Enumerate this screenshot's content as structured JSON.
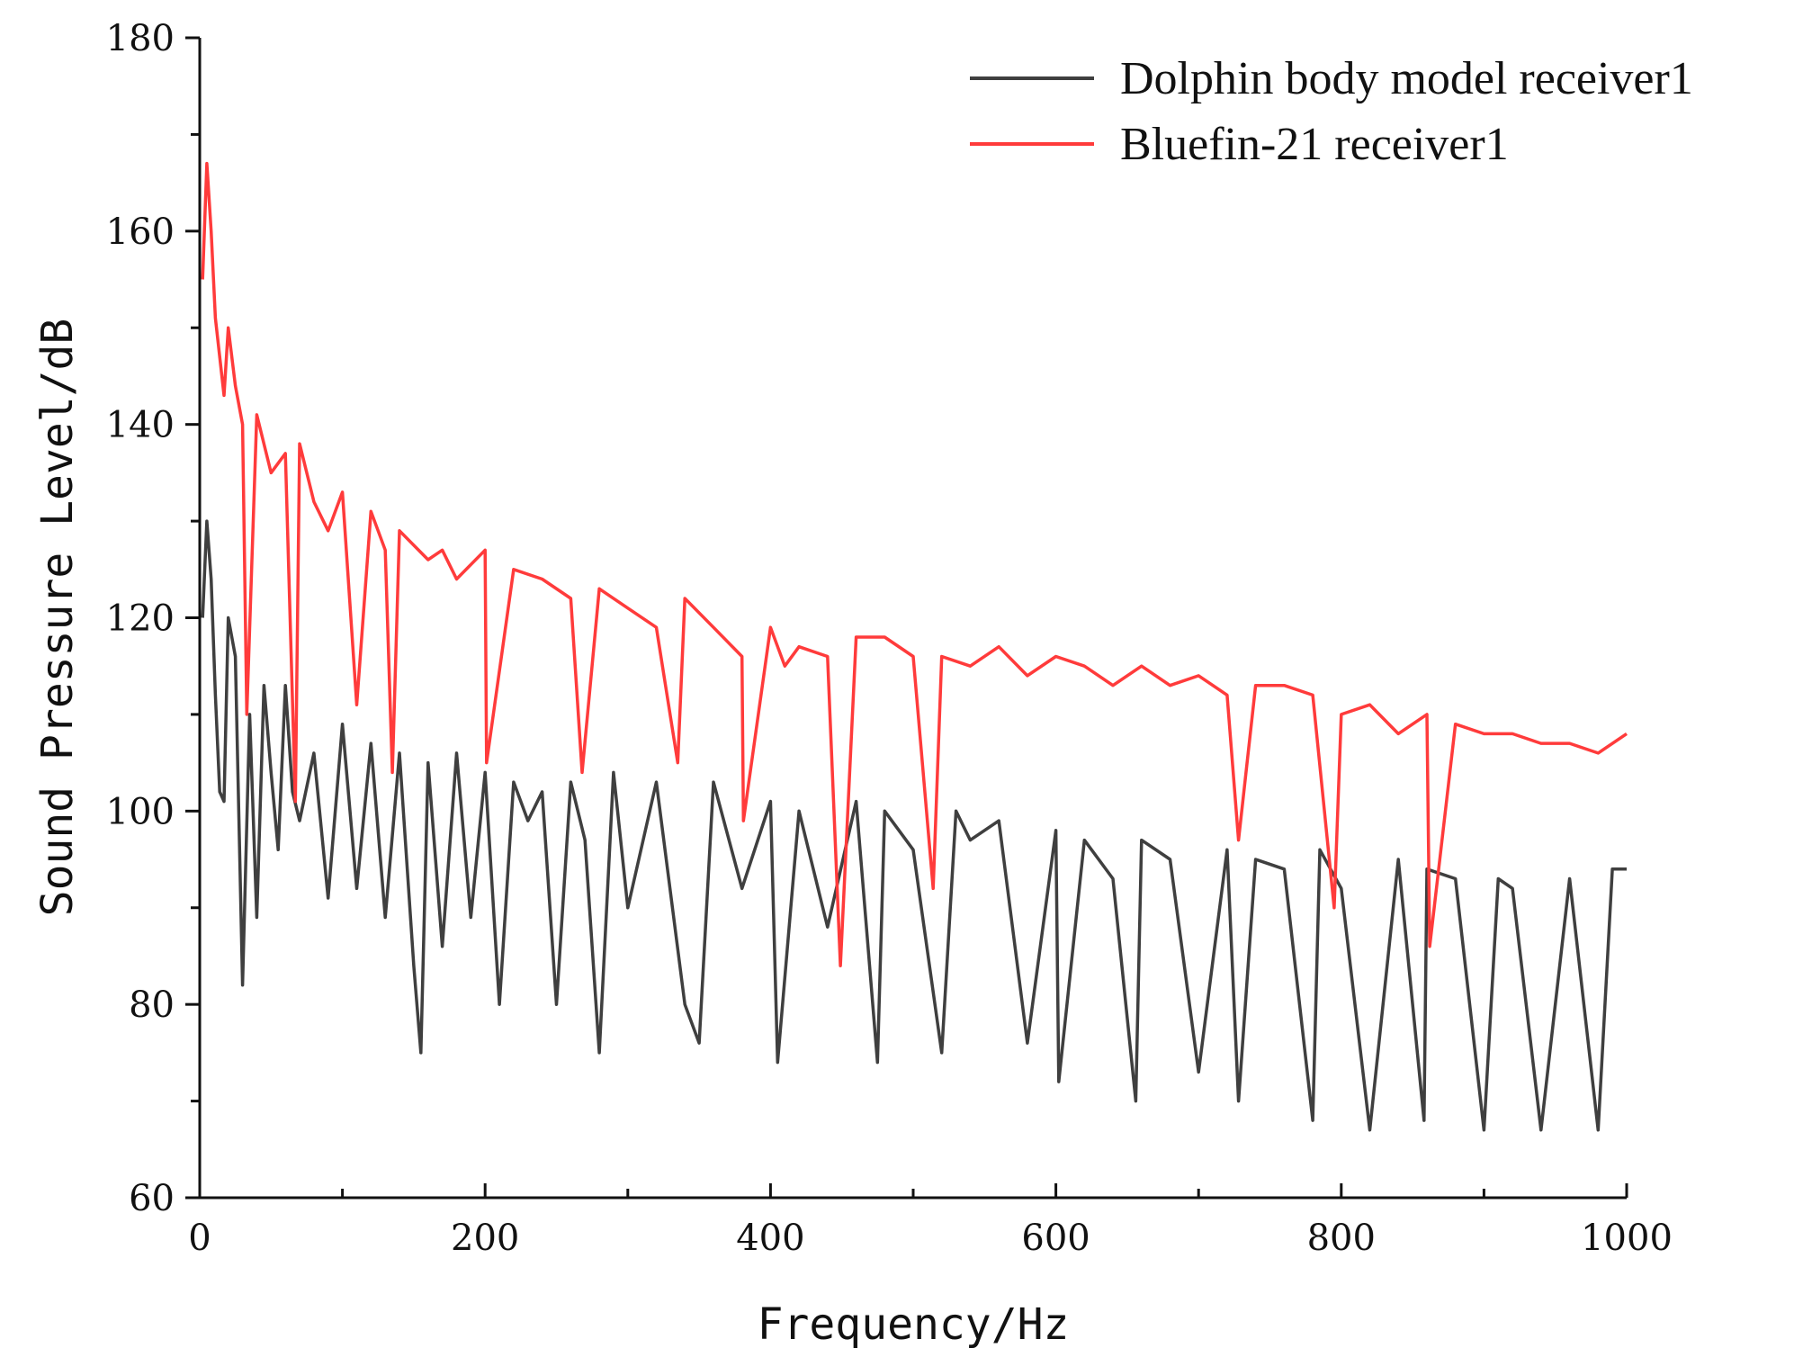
{
  "chart_data": {
    "type": "line",
    "title": "",
    "xlabel": "Frequency/Hz",
    "ylabel": "Sound Pressure Level/dB",
    "xlim": [
      0,
      1000
    ],
    "ylim": [
      60,
      180
    ],
    "xticks": [
      "0",
      "200",
      "400",
      "600",
      "800",
      "1000"
    ],
    "yticks": [
      "60",
      "80",
      "100",
      "120",
      "140",
      "160",
      "180"
    ],
    "grid": false,
    "legend_position": "top-right",
    "series": [
      {
        "name": "Dolphin body model receiver1",
        "color": "#3f3f3f",
        "x": [
          2,
          5,
          8,
          11,
          14,
          17,
          20,
          25,
          30,
          35,
          40,
          45,
          50,
          55,
          60,
          65,
          70,
          80,
          90,
          100,
          110,
          120,
          130,
          140,
          150,
          155,
          160,
          170,
          180,
          190,
          200,
          210,
          220,
          230,
          240,
          250,
          260,
          270,
          280,
          290,
          300,
          320,
          340,
          350,
          360,
          380,
          400,
          405,
          420,
          440,
          460,
          475,
          480,
          500,
          520,
          530,
          540,
          560,
          580,
          600,
          602,
          620,
          640,
          656,
          660,
          680,
          700,
          720,
          728,
          740,
          760,
          780,
          785,
          800,
          820,
          840,
          858,
          860,
          880,
          900,
          910,
          920,
          940,
          960,
          980,
          990,
          1000
        ],
        "values": [
          120,
          130,
          124,
          112,
          102,
          101,
          120,
          116,
          82,
          110,
          89,
          113,
          104,
          96,
          113,
          102,
          99,
          106,
          91,
          109,
          92,
          107,
          89,
          106,
          84,
          75,
          105,
          86,
          106,
          89,
          104,
          80,
          103,
          99,
          102,
          80,
          103,
          97,
          75,
          104,
          90,
          103,
          80,
          76,
          103,
          92,
          101,
          74,
          100,
          88,
          101,
          74,
          100,
          96,
          75,
          100,
          97,
          99,
          76,
          98,
          72,
          97,
          93,
          70,
          97,
          95,
          73,
          96,
          70,
          95,
          94,
          68,
          96,
          92,
          67,
          95,
          68,
          94,
          93,
          67,
          93,
          92,
          67,
          93,
          67,
          94,
          94
        ]
      },
      {
        "name": "Bluefin-21 receiver1",
        "color": "#ff3b3b",
        "x": [
          2,
          5,
          8,
          11,
          14,
          17,
          20,
          25,
          30,
          33,
          40,
          50,
          60,
          67,
          70,
          80,
          90,
          100,
          110,
          120,
          130,
          135,
          140,
          160,
          170,
          180,
          200,
          201,
          220,
          240,
          260,
          268,
          280,
          300,
          320,
          335,
          340,
          360,
          380,
          381,
          400,
          410,
          420,
          440,
          449,
          460,
          480,
          500,
          514,
          520,
          540,
          560,
          580,
          600,
          620,
          640,
          660,
          680,
          700,
          720,
          728,
          740,
          760,
          780,
          795,
          800,
          820,
          840,
          860,
          862,
          880,
          900,
          920,
          940,
          960,
          980,
          1000
        ],
        "values": [
          155,
          167,
          160,
          151,
          147,
          143,
          150,
          144,
          140,
          110,
          141,
          135,
          137,
          101,
          138,
          132,
          129,
          133,
          111,
          131,
          127,
          104,
          129,
          126,
          127,
          124,
          127,
          105,
          125,
          124,
          122,
          104,
          123,
          121,
          119,
          105,
          122,
          119,
          116,
          99,
          119,
          115,
          117,
          116,
          84,
          118,
          118,
          116,
          92,
          116,
          115,
          117,
          114,
          116,
          115,
          113,
          115,
          113,
          114,
          112,
          97,
          113,
          113,
          112,
          90,
          110,
          111,
          108,
          110,
          86,
          109,
          108,
          108,
          107,
          107,
          106,
          108
        ]
      }
    ]
  }
}
